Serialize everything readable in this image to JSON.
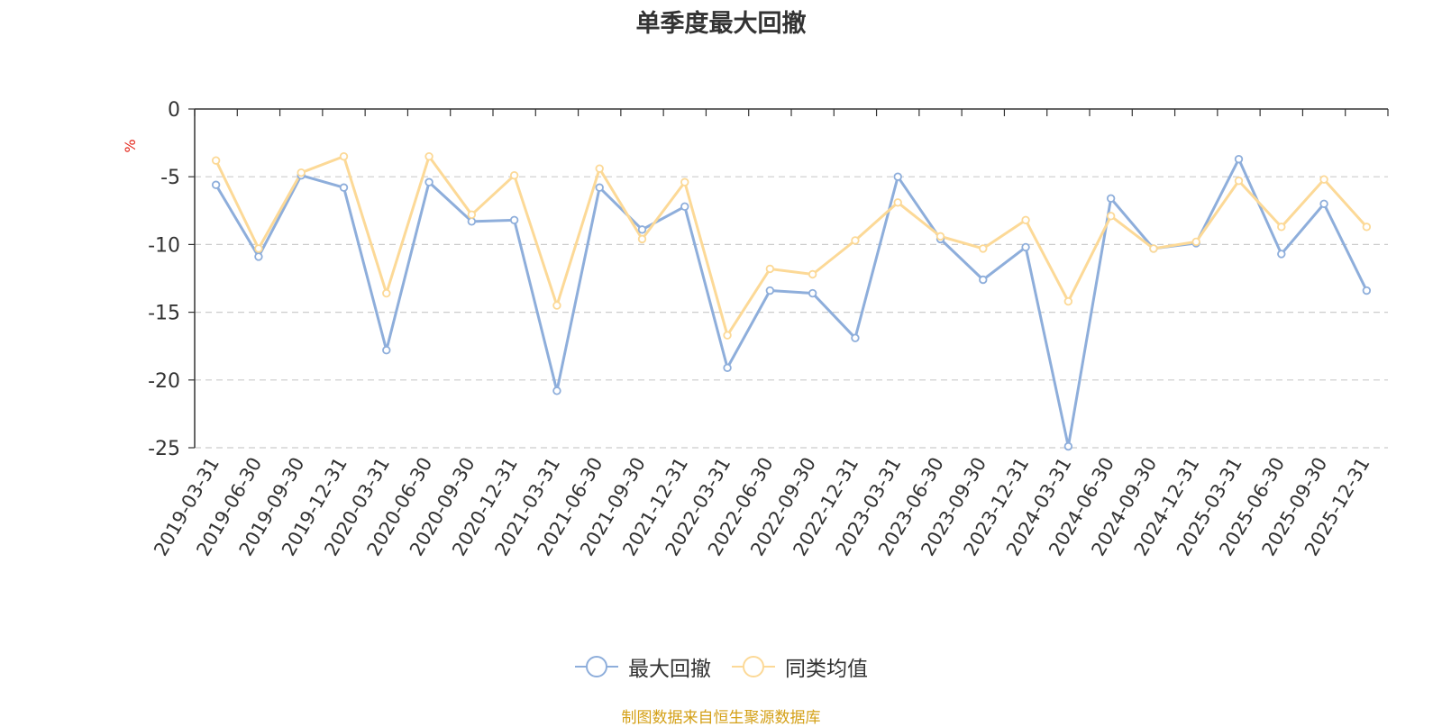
{
  "title": "单季度最大回撤",
  "source_note": "制图数据来自恒生聚源数据库",
  "colors": {
    "series1": "#8eaedb",
    "series2": "#fcd997",
    "axis": "#333333",
    "grid": "#cccccc",
    "unit": "#e3261b",
    "source": "#d4a017"
  },
  "legend_icon": "circle-line-icon",
  "chart_data": {
    "type": "line",
    "title": "单季度最大回撤",
    "ylabel": "%",
    "xlabel": "",
    "ylim": [
      -25,
      0
    ],
    "yticks": [
      0,
      -5,
      -10,
      -15,
      -20,
      -25
    ],
    "grid": true,
    "legend_position": "bottom-center",
    "categories": [
      "2019-03-31",
      "2019-06-30",
      "2019-09-30",
      "2019-12-31",
      "2020-03-31",
      "2020-06-30",
      "2020-09-30",
      "2020-12-31",
      "2021-03-31",
      "2021-06-30",
      "2021-09-30",
      "2021-12-31",
      "2022-03-31",
      "2022-06-30",
      "2022-09-30",
      "2022-12-31",
      "2023-03-31",
      "2023-06-30",
      "2023-09-30",
      "2023-12-31",
      "2024-03-31",
      "2024-06-30",
      "2024-09-30",
      "2024-12-31",
      "2025-03-31",
      "2025-06-30",
      "2025-09-30",
      "2025-12-31"
    ],
    "series": [
      {
        "name": "最大回撤",
        "color": "#8eaedb",
        "values": [
          -5.6,
          -10.9,
          -4.9,
          -5.8,
          -17.8,
          -5.4,
          -8.3,
          -8.2,
          -20.8,
          -5.8,
          -8.9,
          -7.2,
          -19.1,
          -13.4,
          -13.6,
          -16.9,
          -5.0,
          -9.6,
          -12.6,
          -10.2,
          -24.9,
          -6.6,
          -10.3,
          -9.9,
          -3.7,
          -10.7,
          -7.0,
          -13.4
        ]
      },
      {
        "name": "同类均值",
        "color": "#fcd997",
        "values": [
          -3.8,
          -10.3,
          -4.7,
          -3.5,
          -13.6,
          -3.5,
          -7.8,
          -4.9,
          -14.5,
          -4.4,
          -9.6,
          -5.4,
          -16.7,
          -11.8,
          -12.2,
          -9.7,
          -6.9,
          -9.4,
          -10.3,
          -8.2,
          -14.2,
          -7.9,
          -10.3,
          -9.8,
          -5.3,
          -8.7,
          -5.2,
          -8.7
        ]
      }
    ]
  }
}
